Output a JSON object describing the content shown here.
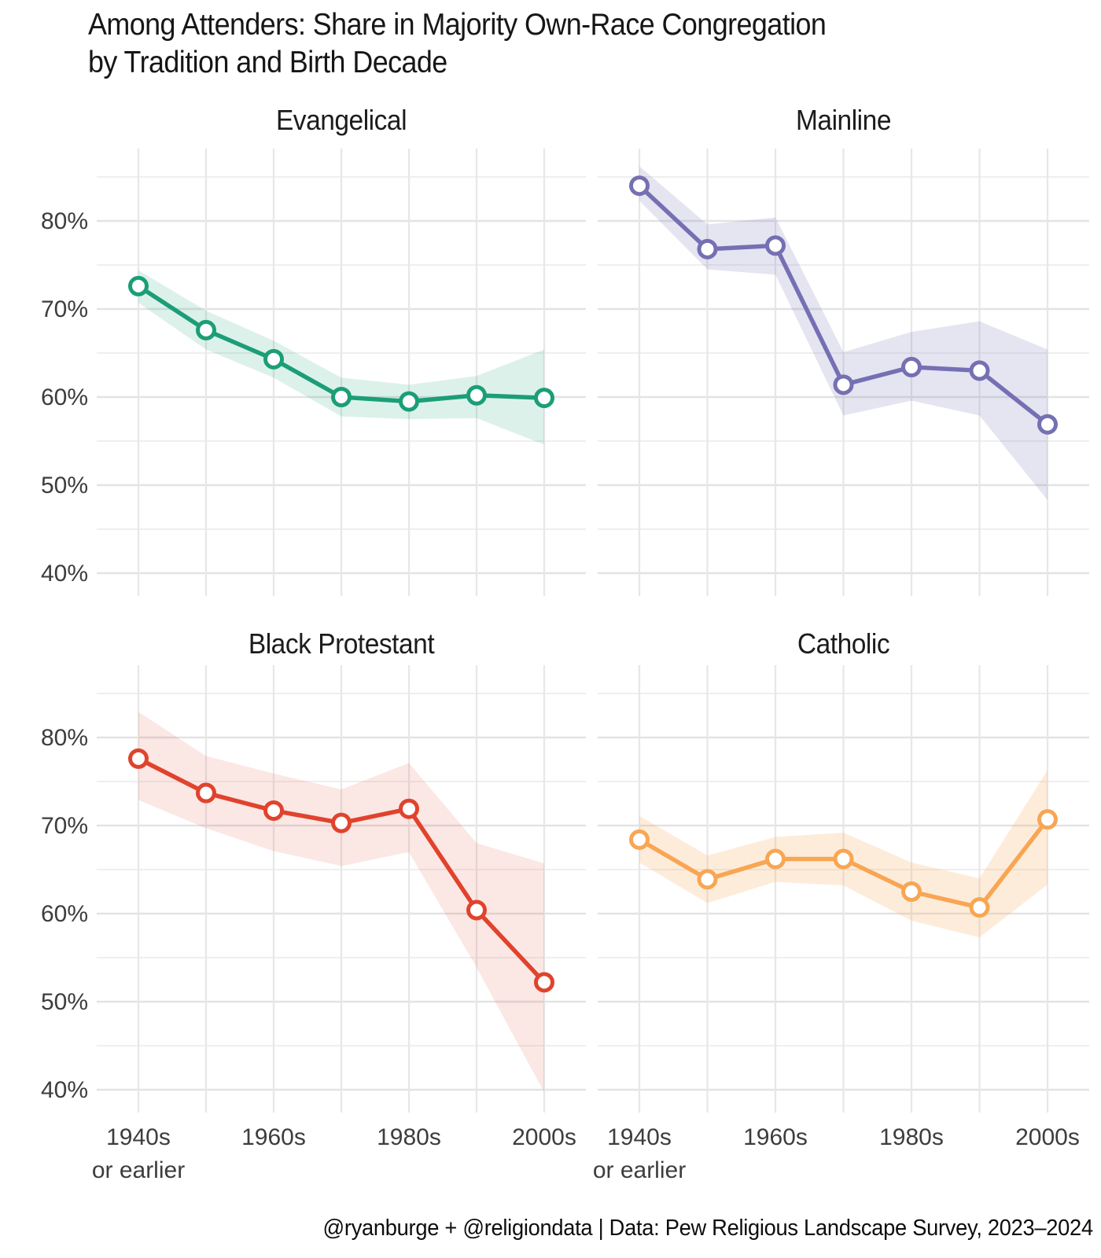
{
  "title": {
    "line1": "Among Attenders: Share in Majority Own-Race Congregation",
    "line2": "by Tradition and Birth Decade"
  },
  "footer": "@ryanburge + @religiondata | Data: Pew Religious Landscape Survey, 2023–2024",
  "chart_data": {
    "type": "line",
    "facet_layout": "2x2 grid, shared axes",
    "categories": [
      "1940s or earlier",
      "1950s",
      "1960s",
      "1970s",
      "1980s",
      "1990s",
      "2000s"
    ],
    "x_axis": {
      "tick_labels": [
        "1940s",
        "1960s",
        "1980s",
        "2000s"
      ],
      "tick_decade_indices": [
        0,
        2,
        4,
        6
      ],
      "first_tick_subline": "or earlier"
    },
    "y_axis": {
      "tick_labels": [
        "80%",
        "70%",
        "60%",
        "50%",
        "40%"
      ],
      "tick_values": [
        80,
        70,
        60,
        50,
        40
      ],
      "minor_values": [
        85,
        75,
        65,
        55,
        45
      ],
      "unit": "percent"
    },
    "ylim": [
      37.5,
      89.5
    ],
    "grid": true,
    "legend": "none (facet titles identify series)",
    "series": [
      {
        "name": "Evangelical",
        "color": "#1B9E77",
        "values": [
          72.6,
          67.6,
          64.3,
          60.0,
          59.5,
          60.2,
          59.9
        ],
        "ci_upper": [
          74.4,
          69.8,
          66.4,
          62.2,
          61.4,
          62.4,
          65.4
        ],
        "ci_lower": [
          70.7,
          65.4,
          62.2,
          57.8,
          57.5,
          57.6,
          54.6
        ]
      },
      {
        "name": "Mainline",
        "color": "#7570B3",
        "values": [
          84.0,
          76.8,
          77.2,
          61.4,
          63.4,
          63.0,
          56.9
        ],
        "ci_upper": [
          86.2,
          79.6,
          80.4,
          65.1,
          67.4,
          68.6,
          65.4
        ],
        "ci_lower": [
          82.3,
          74.5,
          73.9,
          57.9,
          59.6,
          57.9,
          48.3
        ]
      },
      {
        "name": "Black Protestant",
        "color": "#E0432D",
        "values": [
          77.6,
          73.7,
          71.7,
          70.3,
          71.9,
          60.4,
          52.2
        ],
        "ci_upper": [
          82.9,
          77.9,
          75.9,
          74.1,
          77.1,
          68.0,
          65.7
        ],
        "ci_lower": [
          72.9,
          69.7,
          67.1,
          65.4,
          67.0,
          53.9,
          39.7
        ]
      },
      {
        "name": "Catholic",
        "color": "#F8A653",
        "values": [
          68.4,
          63.9,
          66.2,
          66.2,
          62.5,
          60.7,
          70.7
        ],
        "ci_upper": [
          71.1,
          66.6,
          68.7,
          69.2,
          65.8,
          64.0,
          76.3
        ],
        "ci_lower": [
          65.8,
          61.2,
          63.6,
          63.2,
          59.2,
          57.3,
          63.3
        ]
      }
    ]
  }
}
